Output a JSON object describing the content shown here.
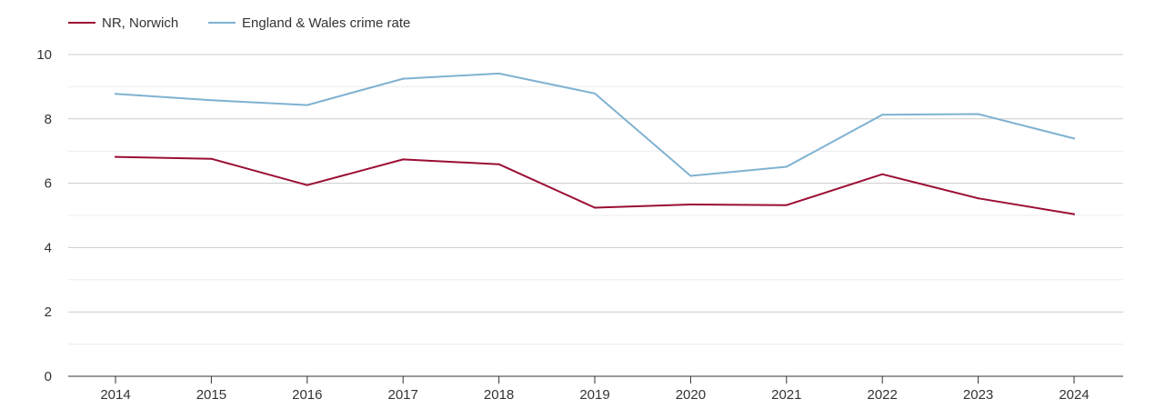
{
  "chart_data": {
    "type": "line",
    "title": "",
    "xlabel": "",
    "ylabel": "",
    "x": [
      "2014",
      "2015",
      "2016",
      "2017",
      "2018",
      "2019",
      "2020",
      "2021",
      "2022",
      "2023",
      "2024"
    ],
    "ylim": [
      0,
      10
    ],
    "yticks": [
      "0",
      "2",
      "4",
      "6",
      "8",
      "10"
    ],
    "grid": true,
    "legend_position": "top-left",
    "series": [
      {
        "name": "NR, Norwich",
        "color": "#9b0e33",
        "values": [
          6.82,
          6.76,
          5.94,
          6.74,
          6.59,
          5.24,
          5.34,
          5.32,
          6.28,
          5.53,
          5.04
        ]
      },
      {
        "name": "England & Wales crime rate",
        "color": "#7fb2d2",
        "values": [
          8.78,
          8.58,
          8.43,
          9.25,
          9.41,
          8.79,
          6.23,
          6.51,
          8.13,
          8.15,
          7.39
        ]
      }
    ]
  }
}
